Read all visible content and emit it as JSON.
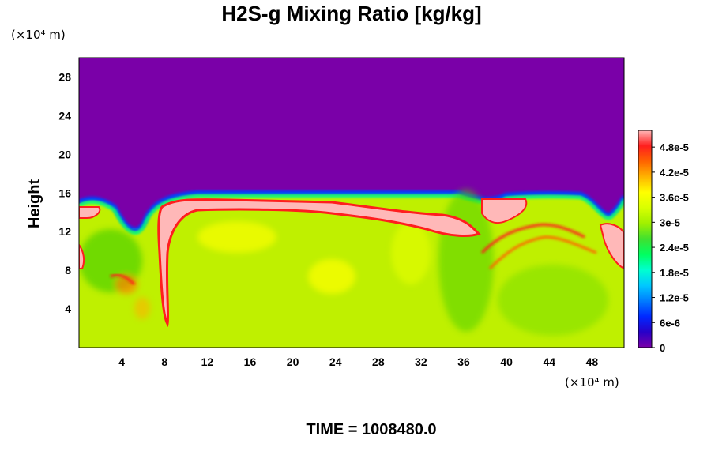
{
  "chart_data": {
    "type": "heatmap",
    "title": "H2S-g Mixing Ratio [kg/kg]",
    "xlabel": "",
    "ylabel": "Height",
    "x_unit": "(×10⁴ m)",
    "y_unit": "(×10⁴ m)",
    "xlim": [
      0,
      51
    ],
    "ylim": [
      0,
      30
    ],
    "x_ticks": [
      "4",
      "8",
      "12",
      "16",
      "20",
      "24",
      "28",
      "32",
      "36",
      "40",
      "44",
      "48"
    ],
    "y_ticks": [
      "4",
      "8",
      "12",
      "16",
      "20",
      "24",
      "28"
    ],
    "colorbar": {
      "min": 0,
      "max": 5.2e-05,
      "tick_labels": [
        "0",
        "6e-6",
        "1.2e-5",
        "1.8e-5",
        "2.4e-5",
        "3e-5",
        "3.6e-5",
        "4.2e-5",
        "4.8e-5"
      ],
      "tick_values": [
        0,
        6e-06,
        1.2e-05,
        1.8e-05,
        2.4e-05,
        3e-05,
        3.6e-05,
        4.2e-05,
        4.8e-05
      ],
      "colors": [
        "#7a00a8",
        "#2800c8",
        "#0028ff",
        "#007cff",
        "#00c8ff",
        "#00ffd0",
        "#00ff60",
        "#40e030",
        "#a0f000",
        "#d8ff00",
        "#ffff00",
        "#ffb400",
        "#ff6400",
        "#ff1e1e",
        "#ffb8b8"
      ]
    },
    "features": {
      "background_value": 0,
      "interior_value": 3.3e-05,
      "boundary_layer_top_height": 15.4,
      "layer_top_max_value": 5.2e-05
    },
    "time_label": "TIME = 1008480.0"
  }
}
